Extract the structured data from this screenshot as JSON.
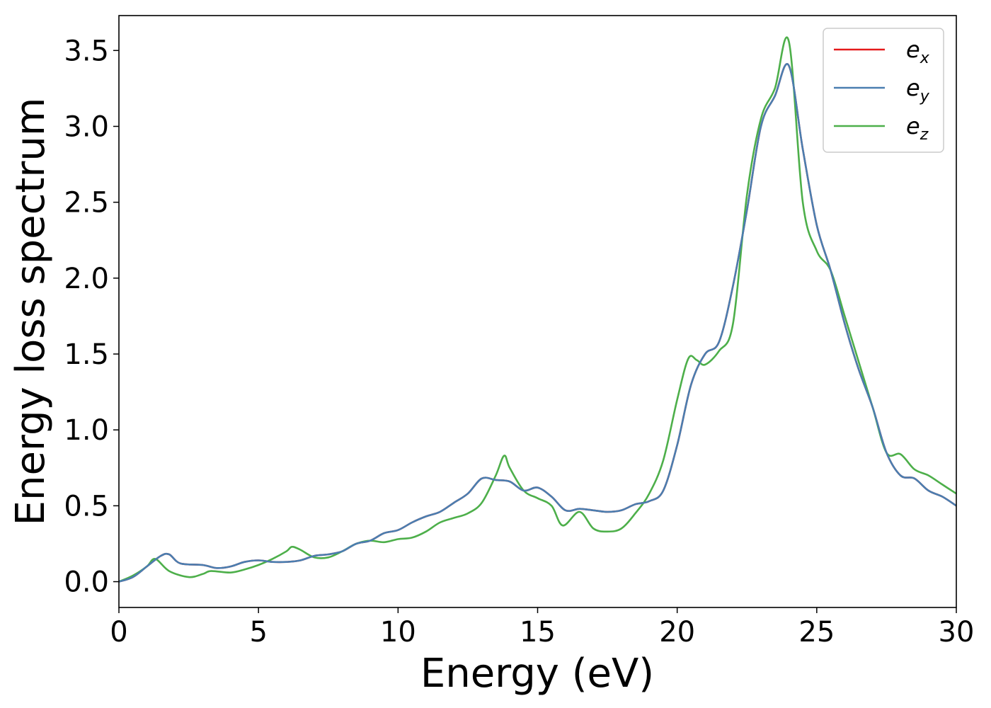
{
  "chart_data": {
    "type": "line",
    "xlabel": "Energy (eV)",
    "ylabel": "Energy loss spectrum",
    "xlim": [
      0,
      30
    ],
    "ylim": [
      -0.17,
      3.73
    ],
    "x_ticks": [
      "0",
      "5",
      "10",
      "15",
      "20",
      "25",
      "30"
    ],
    "y_ticks": [
      "0.0",
      "0.5",
      "1.0",
      "1.5",
      "2.0",
      "2.5",
      "3.0",
      "3.5"
    ],
    "grid": false,
    "legend_position": "top-right",
    "series": [
      {
        "name": "e",
        "subscript": "x",
        "color": "#e41a1c",
        "x": [
          0,
          0.5,
          1.0,
          1.5,
          1.8,
          2.2,
          3.0,
          3.5,
          4.0,
          4.5,
          5.0,
          5.5,
          6.0,
          6.5,
          7.0,
          7.5,
          8.0,
          8.5,
          9.0,
          9.5,
          10.0,
          10.5,
          11.0,
          11.5,
          12.0,
          12.5,
          13.0,
          13.5,
          14.0,
          14.5,
          15.0,
          15.5,
          16.0,
          16.5,
          17.0,
          17.5,
          18.0,
          18.5,
          19.0,
          19.5,
          20.0,
          20.5,
          21.0,
          21.5,
          22.0,
          22.5,
          23.0,
          23.5,
          24.0,
          24.5,
          25.0,
          25.5,
          26.0,
          26.5,
          27.0,
          27.5,
          28.0,
          28.5,
          29.0,
          29.5,
          30.0
        ],
        "y": [
          0.0,
          0.03,
          0.1,
          0.17,
          0.18,
          0.12,
          0.11,
          0.09,
          0.1,
          0.13,
          0.14,
          0.13,
          0.13,
          0.14,
          0.17,
          0.18,
          0.2,
          0.25,
          0.27,
          0.32,
          0.34,
          0.39,
          0.43,
          0.46,
          0.52,
          0.58,
          0.68,
          0.67,
          0.66,
          0.6,
          0.62,
          0.56,
          0.47,
          0.48,
          0.47,
          0.46,
          0.47,
          0.51,
          0.53,
          0.6,
          0.9,
          1.3,
          1.5,
          1.58,
          1.95,
          2.45,
          3.0,
          3.2,
          3.4,
          2.85,
          2.35,
          2.05,
          1.7,
          1.4,
          1.15,
          0.85,
          0.7,
          0.68,
          0.6,
          0.56,
          0.5
        ]
      },
      {
        "name": "e",
        "subscript": "y",
        "color": "#4a7eb0",
        "x": [
          0,
          0.5,
          1.0,
          1.5,
          1.8,
          2.2,
          3.0,
          3.5,
          4.0,
          4.5,
          5.0,
          5.5,
          6.0,
          6.5,
          7.0,
          7.5,
          8.0,
          8.5,
          9.0,
          9.5,
          10.0,
          10.5,
          11.0,
          11.5,
          12.0,
          12.5,
          13.0,
          13.5,
          14.0,
          14.5,
          15.0,
          15.5,
          16.0,
          16.5,
          17.0,
          17.5,
          18.0,
          18.5,
          19.0,
          19.5,
          20.0,
          20.5,
          21.0,
          21.5,
          22.0,
          22.5,
          23.0,
          23.5,
          24.0,
          24.5,
          25.0,
          25.5,
          26.0,
          26.5,
          27.0,
          27.5,
          28.0,
          28.5,
          29.0,
          29.5,
          30.0
        ],
        "y": [
          0.0,
          0.03,
          0.1,
          0.17,
          0.18,
          0.12,
          0.11,
          0.09,
          0.1,
          0.13,
          0.14,
          0.13,
          0.13,
          0.14,
          0.17,
          0.18,
          0.2,
          0.25,
          0.27,
          0.32,
          0.34,
          0.39,
          0.43,
          0.46,
          0.52,
          0.58,
          0.68,
          0.67,
          0.66,
          0.6,
          0.62,
          0.56,
          0.47,
          0.48,
          0.47,
          0.46,
          0.47,
          0.51,
          0.53,
          0.6,
          0.9,
          1.3,
          1.5,
          1.58,
          1.95,
          2.45,
          3.0,
          3.2,
          3.4,
          2.85,
          2.35,
          2.05,
          1.7,
          1.4,
          1.15,
          0.85,
          0.7,
          0.68,
          0.6,
          0.56,
          0.5
        ]
      },
      {
        "name": "e",
        "subscript": "z",
        "color": "#4daf4a",
        "x": [
          0,
          0.5,
          1.0,
          1.3,
          1.8,
          2.5,
          3.0,
          3.3,
          4.0,
          4.5,
          5.0,
          5.5,
          6.0,
          6.2,
          6.5,
          7.0,
          7.5,
          8.0,
          8.5,
          9.0,
          9.5,
          10.0,
          10.5,
          11.0,
          11.5,
          12.0,
          12.5,
          13.0,
          13.5,
          13.8,
          14.0,
          14.5,
          15.0,
          15.5,
          15.9,
          16.5,
          17.0,
          17.5,
          18.0,
          18.5,
          19.0,
          19.5,
          20.0,
          20.4,
          20.7,
          21.0,
          21.5,
          22.0,
          22.5,
          23.0,
          23.5,
          24.0,
          24.5,
          25.0,
          25.5,
          26.0,
          26.5,
          27.0,
          27.5,
          28.0,
          28.5,
          29.0,
          29.5,
          30.0
        ],
        "y": [
          0.0,
          0.04,
          0.1,
          0.15,
          0.07,
          0.03,
          0.05,
          0.07,
          0.06,
          0.08,
          0.11,
          0.15,
          0.2,
          0.23,
          0.21,
          0.16,
          0.16,
          0.2,
          0.25,
          0.27,
          0.26,
          0.28,
          0.29,
          0.33,
          0.39,
          0.42,
          0.45,
          0.52,
          0.7,
          0.83,
          0.75,
          0.6,
          0.55,
          0.5,
          0.37,
          0.46,
          0.35,
          0.33,
          0.35,
          0.45,
          0.58,
          0.8,
          1.2,
          1.47,
          1.46,
          1.43,
          1.52,
          1.7,
          2.55,
          3.05,
          3.25,
          3.56,
          2.5,
          2.18,
          2.05,
          1.75,
          1.45,
          1.15,
          0.85,
          0.84,
          0.74,
          0.7,
          0.64,
          0.58
        ]
      }
    ]
  }
}
